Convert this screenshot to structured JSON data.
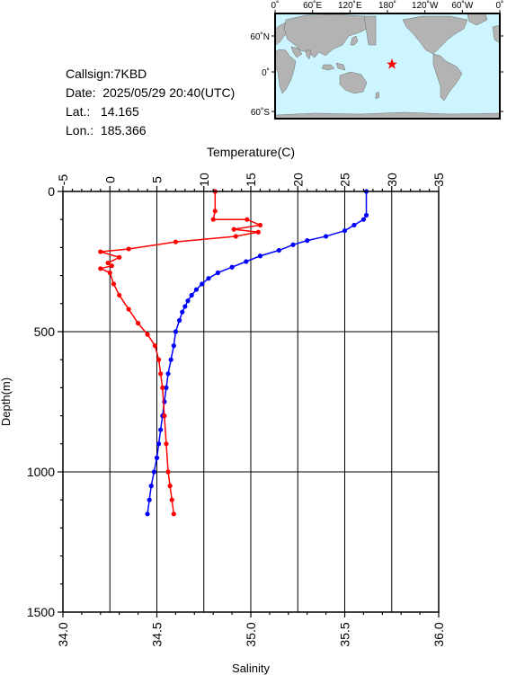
{
  "header": {
    "callsign": "Callsign:7KBD",
    "date": "Date:  2025/05/29 20:40(UTC)",
    "lat": "Lat.:   14.165",
    "lon": "Lon.:  185.366"
  },
  "map": {
    "top_ticks": [
      "0˚",
      "60˚E",
      "120˚E",
      "180˚",
      "120˚W",
      "60˚W",
      "0˚"
    ],
    "left_ticks": [
      "60˚N",
      "0˚",
      "60˚S"
    ],
    "ocean_color": "#ccf5ff",
    "land_color": "#b3b3b3",
    "station_marker": "red-star",
    "station": {
      "lat": 14.165,
      "lon": 185.366
    }
  },
  "chart_data": {
    "type": "line",
    "top_axis": {
      "label": "Temperature(C)",
      "range": [
        -5,
        35
      ],
      "ticks": [
        "-5",
        "0",
        "5",
        "10",
        "15",
        "20",
        "25",
        "30",
        "35"
      ]
    },
    "bottom_axis": {
      "label": "Salinity",
      "range": [
        34.0,
        36.0
      ],
      "ticks": [
        "34.0",
        "34.5",
        "35.0",
        "35.5",
        "36.0"
      ]
    },
    "left_axis": {
      "label": "Depth(m)",
      "range": [
        0,
        1500
      ],
      "ticks": [
        "0",
        "500",
        "1000",
        "1500"
      ],
      "inverted": true
    },
    "grid": "vertical lines at each top tick, horizontal lines at 500 and 1000",
    "series": [
      {
        "quantity": "temperature",
        "color": "#0000ff",
        "points": [
          [
            27.3,
            0
          ],
          [
            27.3,
            85
          ],
          [
            27.0,
            100
          ],
          [
            26.0,
            120
          ],
          [
            25.0,
            140
          ],
          [
            23.0,
            160
          ],
          [
            21.0,
            175
          ],
          [
            19.5,
            190
          ],
          [
            18.0,
            210
          ],
          [
            16.0,
            230
          ],
          [
            14.5,
            250
          ],
          [
            13.0,
            270
          ],
          [
            11.5,
            290
          ],
          [
            10.5,
            310
          ],
          [
            9.8,
            330
          ],
          [
            9.2,
            350
          ],
          [
            8.7,
            370
          ],
          [
            8.3,
            390
          ],
          [
            8.0,
            410
          ],
          [
            7.7,
            430
          ],
          [
            7.4,
            460
          ],
          [
            7.0,
            500
          ],
          [
            6.8,
            550
          ],
          [
            6.5,
            600
          ],
          [
            6.2,
            650
          ],
          [
            6.0,
            700
          ],
          [
            5.8,
            750
          ],
          [
            5.6,
            800
          ],
          [
            5.4,
            850
          ],
          [
            5.2,
            900
          ],
          [
            5.0,
            950
          ],
          [
            4.7,
            1000
          ],
          [
            4.4,
            1050
          ],
          [
            4.2,
            1100
          ],
          [
            4.0,
            1150
          ]
        ]
      },
      {
        "quantity": "salinity",
        "color": "#ff0000",
        "points": [
          [
            34.81,
            0
          ],
          [
            34.81,
            70
          ],
          [
            34.8,
            100
          ],
          [
            34.98,
            100
          ],
          [
            35.05,
            120
          ],
          [
            34.91,
            135
          ],
          [
            35.04,
            145
          ],
          [
            34.92,
            160
          ],
          [
            34.6,
            180
          ],
          [
            34.35,
            205
          ],
          [
            34.2,
            215
          ],
          [
            34.3,
            235
          ],
          [
            34.24,
            255
          ],
          [
            34.26,
            265
          ],
          [
            34.2,
            275
          ],
          [
            34.25,
            290
          ],
          [
            34.27,
            330
          ],
          [
            34.3,
            370
          ],
          [
            34.35,
            420
          ],
          [
            34.4,
            470
          ],
          [
            34.45,
            510
          ],
          [
            34.49,
            550
          ],
          [
            34.51,
            600
          ],
          [
            34.52,
            650
          ],
          [
            34.53,
            700
          ],
          [
            34.54,
            800
          ],
          [
            34.55,
            900
          ],
          [
            34.56,
            1000
          ],
          [
            34.57,
            1050
          ],
          [
            34.58,
            1100
          ],
          [
            34.59,
            1150
          ]
        ]
      }
    ]
  }
}
